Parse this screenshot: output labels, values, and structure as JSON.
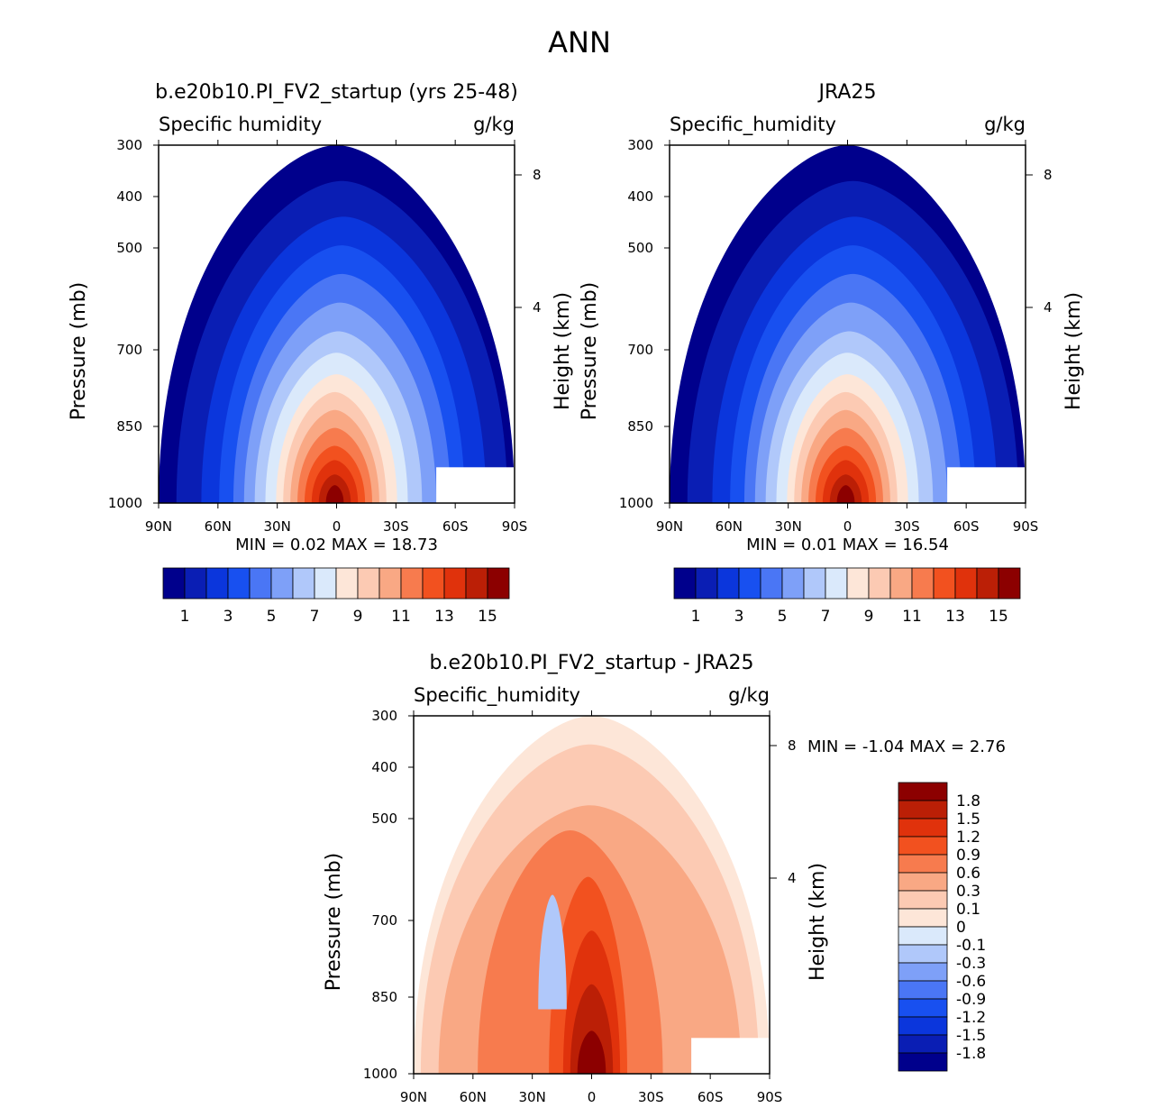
{
  "figure": {
    "title": "ANN"
  },
  "chart_data": [
    {
      "type": "heatmap",
      "id": "model",
      "title": "b.e20b10.PI_FV2_startup (yrs 25-48)",
      "left_label": "Specific humidity",
      "right_label": "g/kg",
      "xlabel": "",
      "ylabel": "Pressure (mb)",
      "ylabel_right": "Height (km)",
      "x_ticks": [
        "90N",
        "60N",
        "30N",
        "0",
        "30S",
        "60S",
        "90S"
      ],
      "y_ticks": [
        "300",
        "400",
        "500",
        "700",
        "850",
        "1000"
      ],
      "y_right_ticks": [
        "8",
        "4"
      ],
      "stats": "MIN =    0.02   MAX =   18.73",
      "colorbar_labels": [
        "1",
        "3",
        "5",
        "7",
        "9",
        "11",
        "13",
        "15"
      ],
      "colors": [
        "#00008c",
        "#0a1eb4",
        "#0b36dc",
        "#1850f0",
        "#4a76f5",
        "#7ea0f8",
        "#b0c8fa",
        "#dae9fb",
        "#fde6d8",
        "#fccab3",
        "#f9a884",
        "#f77b4e",
        "#f2511f",
        "#e0320c",
        "#bb1f06",
        "#8c0000"
      ]
    },
    {
      "type": "heatmap",
      "id": "obs",
      "title": "JRA25",
      "left_label": "Specific_humidity",
      "right_label": "g/kg",
      "xlabel": "",
      "ylabel": "Pressure (mb)",
      "ylabel_right": "Height (km)",
      "x_ticks": [
        "90N",
        "60N",
        "30N",
        "0",
        "30S",
        "60S",
        "90S"
      ],
      "y_ticks": [
        "300",
        "400",
        "500",
        "700",
        "850",
        "1000"
      ],
      "y_right_ticks": [
        "8",
        "4"
      ],
      "stats": "MIN =    0.01   MAX =   16.54",
      "colorbar_labels": [
        "1",
        "3",
        "5",
        "7",
        "9",
        "11",
        "13",
        "15"
      ],
      "colors": [
        "#00008c",
        "#0a1eb4",
        "#0b36dc",
        "#1850f0",
        "#4a76f5",
        "#7ea0f8",
        "#b0c8fa",
        "#dae9fb",
        "#fde6d8",
        "#fccab3",
        "#f9a884",
        "#f77b4e",
        "#f2511f",
        "#e0320c",
        "#bb1f06",
        "#8c0000"
      ]
    },
    {
      "type": "heatmap",
      "id": "diff",
      "title": "b.e20b10.PI_FV2_startup - JRA25",
      "left_label": "Specific_humidity",
      "right_label": "g/kg",
      "xlabel": "",
      "ylabel": "Pressure (mb)",
      "ylabel_right": "Height (km)",
      "x_ticks": [
        "90N",
        "60N",
        "30N",
        "0",
        "30S",
        "60S",
        "90S"
      ],
      "y_ticks": [
        "300",
        "400",
        "500",
        "700",
        "850",
        "1000"
      ],
      "y_right_ticks": [
        "8",
        "4"
      ],
      "stats": "MIN =   -1.04   MAX =    2.76",
      "colorbar_labels": [
        "1.8",
        "1.5",
        "1.2",
        "0.9",
        "0.6",
        "0.3",
        "0.1",
        "0",
        "-0.1",
        "-0.3",
        "-0.6",
        "-0.9",
        "-1.2",
        "-1.5",
        "-1.8"
      ],
      "colors": [
        "#8c0000",
        "#bb1f06",
        "#e0320c",
        "#f2511f",
        "#f77b4e",
        "#f9a884",
        "#fccab3",
        "#fde6d8",
        "#dae9fb",
        "#b0c8fa",
        "#7ea0f8",
        "#4a76f5",
        "#1850f0",
        "#0b36dc",
        "#0a1eb4",
        "#00008c"
      ]
    }
  ]
}
